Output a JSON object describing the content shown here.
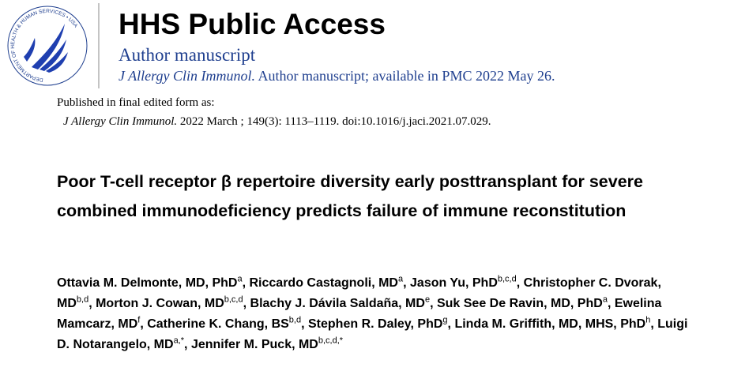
{
  "logo": {
    "text": "DEPARTMENT OF HEALTH & HUMAN SERVICES • USA"
  },
  "header": {
    "title": "HHS Public Access",
    "subtitle": "Author manuscript",
    "journal": "J Allergy Clin Immunol.",
    "availability": "Author manuscript; available in PMC 2022 May 26."
  },
  "published": {
    "label": "Published in final edited form as:",
    "journal": "J Allergy Clin Immunol.",
    "citation": "2022 March ; 149(3): 1113–1119. doi:10.1016/j.jaci.2021.07.029."
  },
  "article": {
    "title": "Poor T-cell receptor β repertoire diversity early posttransplant for severe combined immunodeficiency predicts failure of immune reconstitution",
    "authors": [
      {
        "name": "Ottavia M. Delmonte, MD, PhD",
        "affiliations": "a"
      },
      {
        "name": "Riccardo Castagnoli, MD",
        "affiliations": "a"
      },
      {
        "name": "Jason Yu, PhD",
        "affiliations": "b,c,d"
      },
      {
        "name": "Christopher C. Dvorak, MD",
        "affiliations": "b,d"
      },
      {
        "name": "Morton J. Cowan, MD",
        "affiliations": "b,c,d"
      },
      {
        "name": "Blachy J. Dávila Saldaña, MD",
        "affiliations": "e"
      },
      {
        "name": "Suk See De Ravin, MD, PhD",
        "affiliations": "a"
      },
      {
        "name": "Ewelina Mamcarz, MD",
        "affiliations": "f"
      },
      {
        "name": "Catherine K. Chang, BS",
        "affiliations": "b,d"
      },
      {
        "name": "Stephen R. Daley, PhD",
        "affiliations": "g"
      },
      {
        "name": "Linda M. Griffith, MD, MHS, PhD",
        "affiliations": "h"
      },
      {
        "name": "Luigi D. Notarangelo, MD",
        "affiliations": "a,*"
      },
      {
        "name": "Jennifer M. Puck, MD",
        "affiliations": "b,c,d,*"
      }
    ]
  }
}
